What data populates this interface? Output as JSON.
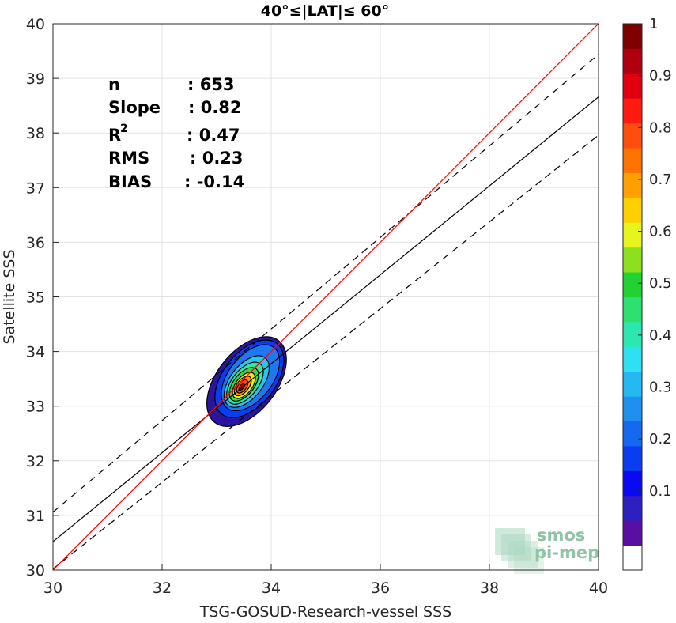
{
  "chart_data": {
    "type": "scatter-density-contour",
    "title": "40°≤|LAT|≤ 60°",
    "xlabel": "TSG-GOSUD-Research-vessel SSS",
    "ylabel": "Satellite SSS",
    "xlim": [
      30,
      40
    ],
    "ylim": [
      30,
      40
    ],
    "xticks": [
      "30",
      "32",
      "34",
      "36",
      "38",
      "40"
    ],
    "yticks": [
      "30",
      "31",
      "32",
      "33",
      "34",
      "35",
      "36",
      "37",
      "38",
      "39",
      "40"
    ],
    "grid": true,
    "stats": [
      {
        "label": "n",
        "value": ": 653"
      },
      {
        "label": "Slope",
        "value": ": 0.82"
      },
      {
        "label": "R",
        "sup": "2",
        "value": ": 0.47"
      },
      {
        "label": "RMS",
        "value": ": 0.23"
      },
      {
        "label": "BIAS",
        "value": ": -0.14"
      }
    ],
    "lines": {
      "one_to_one": {
        "color": "#ff0000",
        "points": [
          [
            30,
            30
          ],
          [
            40,
            40
          ]
        ]
      },
      "regression": {
        "color": "#000000",
        "points": [
          [
            30,
            30.52
          ],
          [
            40,
            38.66
          ]
        ]
      },
      "regression_plus": {
        "color": "#000000",
        "dash": true,
        "points": [
          [
            30,
            31.06
          ],
          [
            40,
            39.44
          ]
        ]
      },
      "regression_minus": {
        "color": "#000000",
        "dash": true,
        "points": [
          [
            30,
            30.02
          ],
          [
            40,
            37.96
          ]
        ]
      }
    },
    "density_center": {
      "x": 33.45,
      "y": 33.35
    },
    "contours": [
      {
        "level": 0.1,
        "color": "#2a14a0",
        "rx": 0.55,
        "ry": 0.95,
        "cx": 33.55,
        "cy": 33.45
      },
      {
        "level": 0.2,
        "color": "#0a3cf0",
        "rx": 0.48,
        "ry": 0.82,
        "cx": 33.6,
        "cy": 33.5
      },
      {
        "level": 0.25,
        "color": "#1f78f0",
        "rx": 0.4,
        "ry": 0.7,
        "cx": 33.62,
        "cy": 33.52
      },
      {
        "level": 0.35,
        "color": "#29c6f2",
        "rx": 0.3,
        "ry": 0.55,
        "cx": 33.55,
        "cy": 33.45
      },
      {
        "level": 0.45,
        "color": "#2ee6a8",
        "rx": 0.24,
        "ry": 0.45,
        "cx": 33.52,
        "cy": 33.42
      },
      {
        "level": 0.55,
        "color": "#3fd24a",
        "rx": 0.19,
        "ry": 0.36,
        "cx": 33.5,
        "cy": 33.4
      },
      {
        "level": 0.65,
        "color": "#e8ee1e",
        "rx": 0.15,
        "ry": 0.28,
        "cx": 33.5,
        "cy": 33.38
      },
      {
        "level": 0.75,
        "color": "#ff9a00",
        "rx": 0.11,
        "ry": 0.21,
        "cx": 33.48,
        "cy": 33.37
      },
      {
        "level": 0.85,
        "color": "#ff4d10",
        "rx": 0.075,
        "ry": 0.14,
        "cx": 33.47,
        "cy": 33.36
      },
      {
        "level": 0.95,
        "color": "#c8001c",
        "rx": 0.035,
        "ry": 0.07,
        "cx": 33.46,
        "cy": 33.35
      }
    ],
    "colorbar": {
      "ticks": [
        "0.1",
        "0.2",
        "0.3",
        "0.4",
        "0.5",
        "0.6",
        "0.7",
        "0.8",
        "0.9",
        "1"
      ],
      "colors": [
        "#ffffff",
        "#5a0fa0",
        "#2e1fc0",
        "#0a0af0",
        "#0a3cf0",
        "#1568f0",
        "#2090f0",
        "#26b8f0",
        "#2ee0f2",
        "#2ee6b0",
        "#2ee070",
        "#22d230",
        "#8ee01e",
        "#e8f41e",
        "#ffd000",
        "#ffa000",
        "#ff7400",
        "#ff4d10",
        "#ff1a10",
        "#e00010",
        "#b00010",
        "#800000"
      ]
    },
    "logo": {
      "line1": "smos",
      "line2": "pi-mep"
    }
  }
}
